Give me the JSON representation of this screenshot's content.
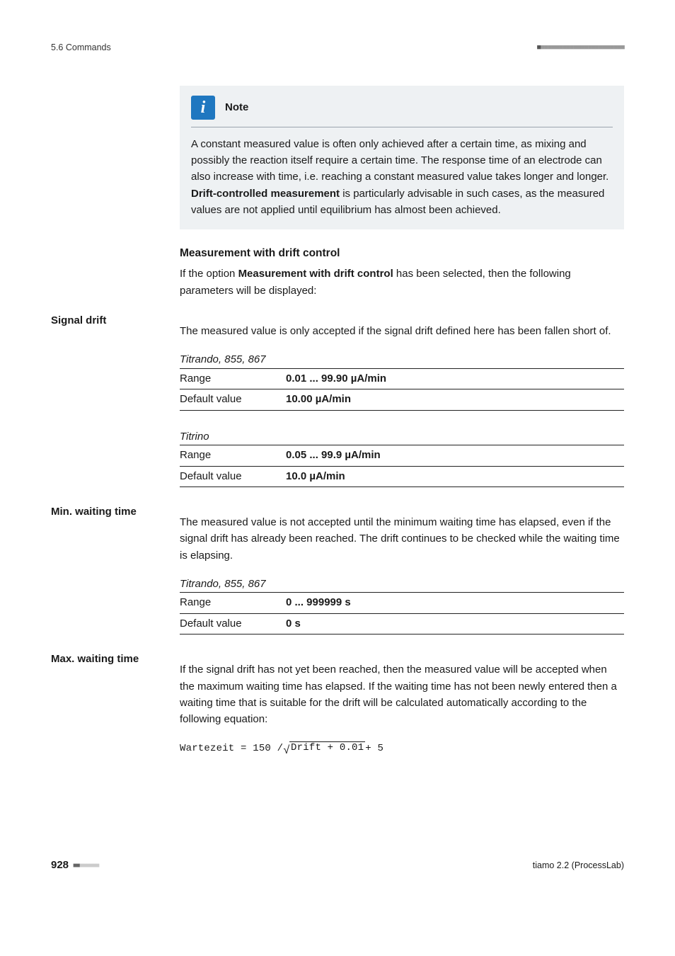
{
  "header": {
    "section": "5.6 Commands",
    "squares_dark": "■",
    "squares_light": "■■■■■■■■■■■■■■■■■■■■■■■"
  },
  "note": {
    "title": "Note",
    "body_pre": "A constant measured value is often only achieved after a certain time, as mixing and possibly the reaction itself require a certain time. The response time of an electrode can also increase with time, i.e. reaching a constant measured value takes longer and longer. ",
    "body_bold": "Drift-controlled measurement",
    "body_post": " is particularly advisable in such cases, as the measured values are not applied until equilibrium has almost been achieved."
  },
  "mwd": {
    "heading": "Measurement with drift control",
    "intro_pre": "If the option ",
    "intro_bold": "Measurement with drift control",
    "intro_post": " has been selected, then the following parameters will be displayed:"
  },
  "signal_drift": {
    "label": "Signal drift",
    "desc": "The measured value is only accepted if the signal drift defined here has been fallen short of.",
    "groups": [
      {
        "name": "Titrando, 855, 867",
        "rows": [
          {
            "k": "Range",
            "v": "0.01 ... 99.90 µA/min"
          },
          {
            "k": "Default value",
            "v": "10.00 µA/min"
          }
        ]
      },
      {
        "name": "Titrino",
        "rows": [
          {
            "k": "Range",
            "v": "0.05 ... 99.9 µA/min"
          },
          {
            "k": "Default value",
            "v": "10.0 µA/min"
          }
        ]
      }
    ]
  },
  "min_wait": {
    "label": "Min. waiting time",
    "desc": "The measured value is not accepted until the minimum waiting time has elapsed, even if the signal drift has already been reached. The drift continues to be checked while the waiting time is elapsing.",
    "groups": [
      {
        "name": "Titrando, 855, 867",
        "rows": [
          {
            "k": "Range",
            "v": "0 ... 999999 s"
          },
          {
            "k": "Default value",
            "v": "0 s"
          }
        ]
      }
    ]
  },
  "max_wait": {
    "label": "Max. waiting time",
    "desc": "If the signal drift has not yet been reached, then the measured value will be accepted when the maximum waiting time has elapsed. If the waiting time has not been newly entered then a waiting time that is suitable for the drift will be calculated automatically according to the following equation:",
    "equation": {
      "pre": "Wartezeit = 150 / ",
      "sqrt_arg": "Drift + 0.01",
      "post": " + 5"
    }
  },
  "footer": {
    "page": "928",
    "squares_lead": "■■",
    "squares_rest": "■■■■■■",
    "product": "tiamo 2.2 (ProcessLab)"
  }
}
